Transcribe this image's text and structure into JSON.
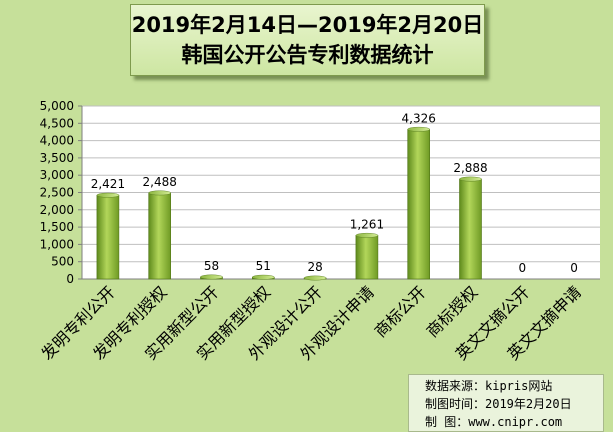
{
  "title_lines": [
    "2019年2月14日—2019年2月20日",
    "韩国公开公告专利数据统计"
  ],
  "chart_data": {
    "type": "bar",
    "title": "2019年2月14日—2019年2月20日 韩国公开公告专利数据统计",
    "categories": [
      "发明专利公开",
      "发明专利授权",
      "实用新型公开",
      "实用新型授权",
      "外观设计公开",
      "外观设计申请",
      "商标公开",
      "商标授权",
      "英文文摘公开",
      "英文文摘申请"
    ],
    "values": [
      2421,
      2488,
      58,
      51,
      28,
      1261,
      4326,
      2888,
      0,
      0
    ],
    "data_labels": [
      "2,421",
      "2,488",
      "58",
      "51",
      "28",
      "1,261",
      "4,326",
      "2,888",
      "0",
      "0"
    ],
    "ylim": [
      0,
      5000
    ],
    "yticks": [
      0,
      500,
      1000,
      1500,
      2000,
      2500,
      3000,
      3500,
      4000,
      4500,
      5000
    ],
    "ytick_labels": [
      "0",
      "500",
      "1,000",
      "1,500",
      "2,000",
      "2,500",
      "3,000",
      "3,500",
      "4,000",
      "4,500",
      "5,000"
    ],
    "grid": true,
    "bar_color": "#8db43a",
    "plot_background": "#ffffff"
  },
  "source": {
    "line1": "数据来源：kipris网站",
    "line2": "制图时间：2019年2月20日",
    "line3": "制    图：www.cnipr.com"
  }
}
